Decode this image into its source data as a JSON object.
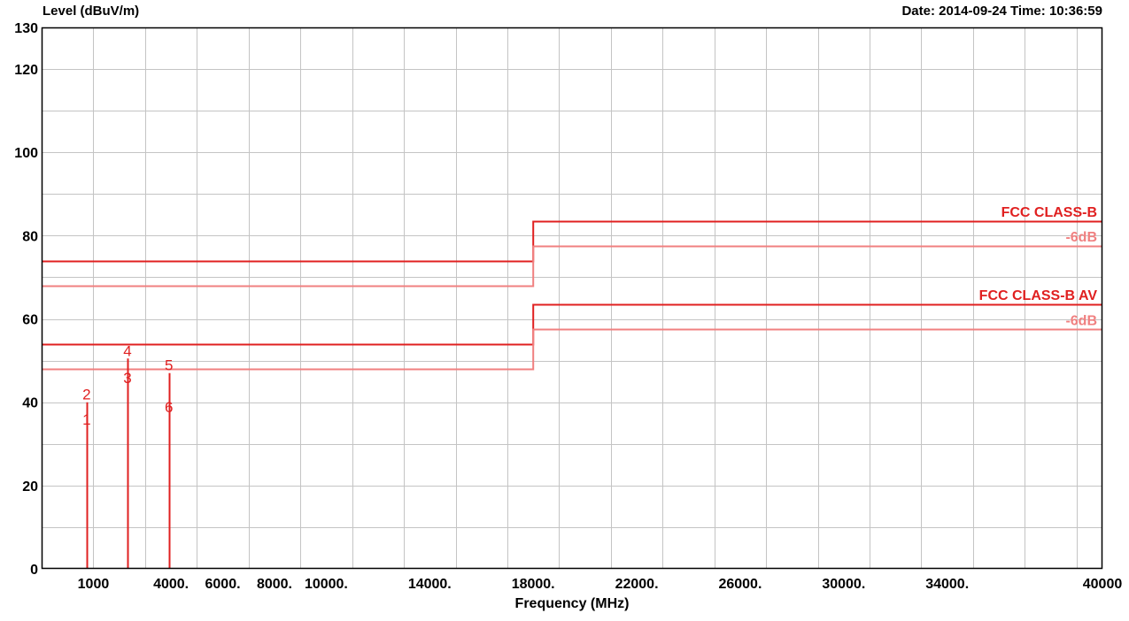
{
  "header": {
    "date_time": "Date: 2014-09-24  Time: 10:36:59"
  },
  "chart_data": {
    "type": "line",
    "ylabel": "Level (dBuV/m)",
    "xlabel": "Frequency (MHz)",
    "xlim": [
      -1000,
      40000
    ],
    "ylim": [
      0,
      130
    ],
    "x_gridlines": [
      1000,
      3000,
      5000,
      7000,
      9000,
      11000,
      13000,
      15000,
      17000,
      19000,
      21000,
      23000,
      25000,
      27000,
      29000,
      31000,
      33000,
      35000,
      37000,
      39000
    ],
    "y_gridlines": [
      10,
      20,
      30,
      40,
      50,
      60,
      70,
      80,
      90,
      100,
      110,
      120
    ],
    "x_ticks": [
      {
        "value": 1000,
        "label": "1000"
      },
      {
        "value": 4000,
        "label": "4000."
      },
      {
        "value": 6000,
        "label": "6000."
      },
      {
        "value": 8000,
        "label": "8000."
      },
      {
        "value": 10000,
        "label": "10000."
      },
      {
        "value": 14000,
        "label": "14000."
      },
      {
        "value": 18000,
        "label": "18000."
      },
      {
        "value": 22000,
        "label": "22000."
      },
      {
        "value": 26000,
        "label": "26000."
      },
      {
        "value": 30000,
        "label": "30000."
      },
      {
        "value": 34000,
        "label": "34000."
      },
      {
        "value": 40000,
        "label": "40000"
      }
    ],
    "y_ticks": [
      {
        "value": 0,
        "label": "0"
      },
      {
        "value": 20,
        "label": "20"
      },
      {
        "value": 40,
        "label": "40"
      },
      {
        "value": 60,
        "label": "60"
      },
      {
        "value": 80,
        "label": "80"
      },
      {
        "value": 100,
        "label": "100"
      },
      {
        "value": 120,
        "label": "120"
      },
      {
        "value": 130,
        "label": "130"
      }
    ],
    "limit_lines": [
      {
        "points": [
          [
            -1000,
            74
          ],
          [
            18000,
            74
          ],
          [
            18000,
            83.5
          ],
          [
            40000,
            83.5
          ]
        ],
        "color": "#e02020",
        "label": "FCC CLASS-B",
        "label_at_y": 83.5
      },
      {
        "points": [
          [
            -1000,
            68
          ],
          [
            18000,
            68
          ],
          [
            18000,
            77.5
          ],
          [
            40000,
            77.5
          ]
        ],
        "color": "#f08080",
        "label": "-6dB",
        "label_at_y": 77.5
      },
      {
        "points": [
          [
            -1000,
            54
          ],
          [
            18000,
            54
          ],
          [
            18000,
            63.5
          ],
          [
            40000,
            63.5
          ]
        ],
        "color": "#e02020",
        "label": "FCC CLASS-B  AV",
        "label_at_y": 63.5
      },
      {
        "points": [
          [
            -1000,
            48
          ],
          [
            18000,
            48
          ],
          [
            18000,
            57.5
          ],
          [
            40000,
            57.5
          ]
        ],
        "color": "#f08080",
        "label": "-6dB",
        "label_at_y": 57.5
      }
    ],
    "markers": [
      {
        "label": "1",
        "x": 740,
        "y": 34
      },
      {
        "label": "2",
        "x": 740,
        "y": 40
      },
      {
        "label": "3",
        "x": 2320,
        "y": 44
      },
      {
        "label": "4",
        "x": 2320,
        "y": 50.5
      },
      {
        "label": "5",
        "x": 3920,
        "y": 47
      },
      {
        "label": "6",
        "x": 3920,
        "y": 37
      }
    ],
    "grid": true,
    "line_color": "#e02020"
  }
}
